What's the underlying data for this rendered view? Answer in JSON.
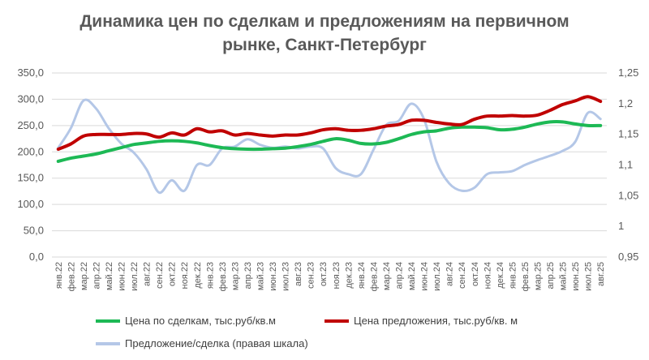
{
  "chart_data": {
    "type": "line",
    "title": [
      "Динамика цен по сделкам и предложениям на первичном",
      "рынке, Санкт-Петербург"
    ],
    "x": [
      "янв.22",
      "фев.22",
      "мар.22",
      "апр.22",
      "май.22",
      "июн.22",
      "июл.22",
      "авг.22",
      "сен.22",
      "окт.22",
      "ноя.22",
      "дек.22",
      "янв.23",
      "фев.23",
      "мар.23",
      "апр.23",
      "май.23",
      "июн.23",
      "июл.23",
      "авг.23",
      "сен.23",
      "окт.23",
      "ноя.23",
      "дек.23",
      "янв.24",
      "фев.24",
      "мар.24",
      "апр.24",
      "май.24",
      "июн.24",
      "июл.24",
      "авг.24",
      "сен.24",
      "окт.24",
      "ноя.24",
      "дек.24",
      "янв.25",
      "фев.25",
      "мар.25",
      "апр.25",
      "май.25",
      "июн.25",
      "июл.25",
      "авг.25"
    ],
    "y_left": {
      "ticks": [
        "350,0",
        "300,0",
        "250,0",
        "200,0",
        "150,0",
        "100,0",
        "50,0",
        "0,0"
      ],
      "min": 0,
      "max": 350,
      "step": 50
    },
    "y_right": {
      "ticks": [
        "1,25",
        "1,2",
        "1,15",
        "1,1",
        "1,05",
        "1",
        "0,95"
      ],
      "min": 0.95,
      "max": 1.25,
      "step": 0.05
    },
    "grid": true,
    "legend_position": "bottom",
    "series": [
      {
        "name": "Цена по сделкам, тыс.руб/кв.м",
        "axis": "left",
        "color": "#1db955",
        "values": [
          182,
          188,
          192,
          196,
          202,
          208,
          214,
          217,
          220,
          221,
          220,
          217,
          212,
          208,
          206,
          205,
          205,
          206,
          207,
          210,
          214,
          220,
          225,
          222,
          216,
          215,
          218,
          225,
          233,
          238,
          240,
          245,
          247,
          247,
          246,
          242,
          243,
          247,
          253,
          257,
          257,
          253,
          250,
          250
        ]
      },
      {
        "name": "Цена предложения, тыс.руб/кв. м",
        "axis": "left",
        "color": "#c00000",
        "values": [
          205,
          215,
          230,
          233,
          233,
          233,
          235,
          234,
          228,
          236,
          232,
          244,
          238,
          240,
          232,
          235,
          232,
          230,
          232,
          232,
          236,
          242,
          244,
          241,
          241,
          244,
          249,
          252,
          260,
          260,
          256,
          253,
          252,
          262,
          268,
          268,
          269,
          268,
          270,
          279,
          290,
          297,
          305,
          296
        ]
      },
      {
        "name": "Предложение/сделка (правая шкала)",
        "axis": "right",
        "color": "#b4c7e7",
        "values": [
          1.128,
          1.16,
          1.205,
          1.192,
          1.16,
          1.135,
          1.12,
          1.093,
          1.055,
          1.075,
          1.058,
          1.1,
          1.1,
          1.127,
          1.13,
          1.142,
          1.133,
          1.128,
          1.13,
          1.127,
          1.13,
          1.127,
          1.095,
          1.085,
          1.085,
          1.125,
          1.165,
          1.172,
          1.2,
          1.175,
          1.105,
          1.07,
          1.058,
          1.063,
          1.085,
          1.088,
          1.09,
          1.1,
          1.108,
          1.115,
          1.123,
          1.138,
          1.185,
          1.175
        ]
      }
    ]
  }
}
